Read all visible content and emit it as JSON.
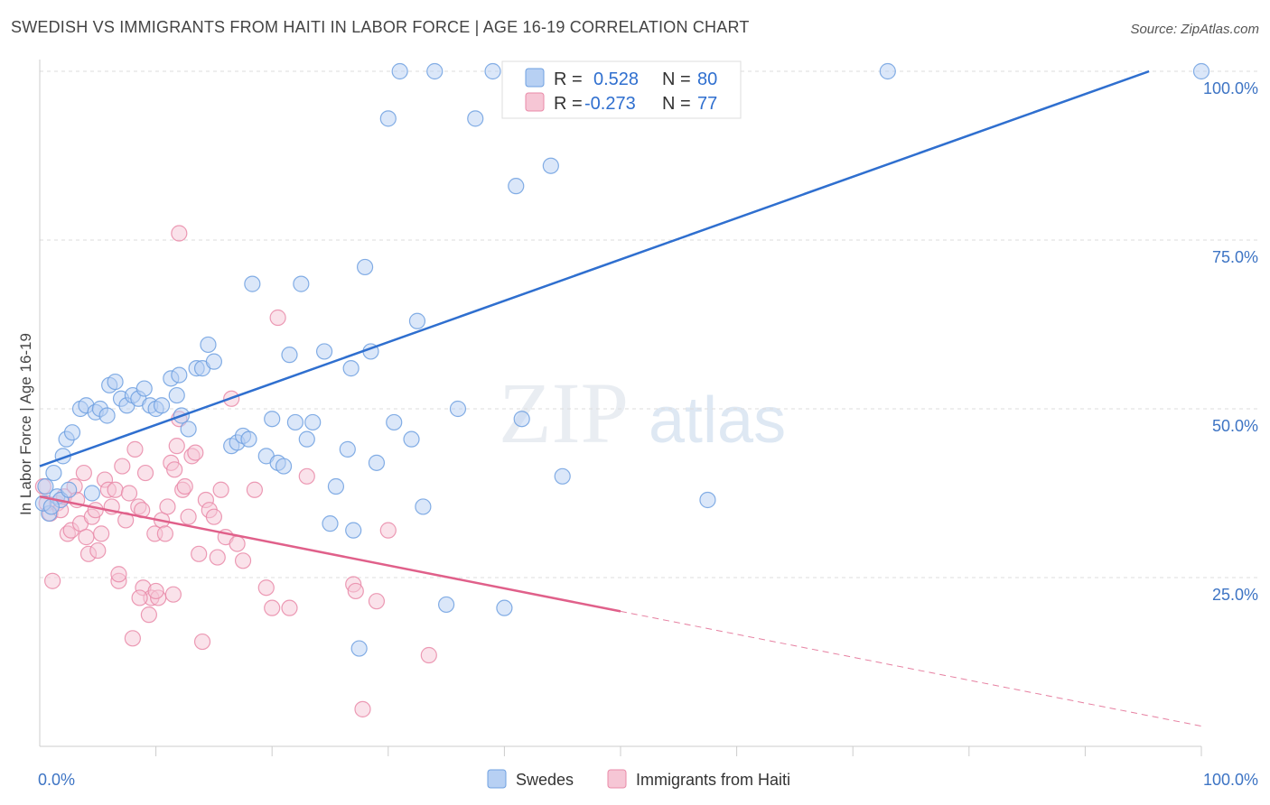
{
  "title": "SWEDISH VS IMMIGRANTS FROM HAITI IN LABOR FORCE | AGE 16-19 CORRELATION CHART",
  "source": "Source: ZipAtlas.com",
  "watermark": {
    "zip": "ZIP",
    "atlas": "atlas"
  },
  "colors": {
    "swedes": "#6fa0e0",
    "swedes_fill": "#b7d0f3",
    "swedes_line": "#2f6fcf",
    "haiti": "#e98aa8",
    "haiti_fill": "#f6c6d5",
    "haiti_line": "#e0608a",
    "grid": "#dddddd",
    "tick_text": "#3d74c4"
  },
  "legend": {
    "rows": [
      {
        "r_label": "R =",
        "r_value": "0.528",
        "n_label": "N =",
        "n_value": "80"
      },
      {
        "r_label": "R =",
        "r_value": "-0.273",
        "n_label": "N =",
        "n_value": "77"
      }
    ]
  },
  "bottom_legend": {
    "swedes": "Swedes",
    "haiti": "Immigrants from Haiti"
  },
  "chart_data": {
    "type": "scatter",
    "title": "SWEDISH VS IMMIGRANTS FROM HAITI IN LABOR FORCE | AGE 16-19 CORRELATION CHART",
    "ylabel": "In Labor Force | Age 16-19",
    "xlabel": "",
    "xlim": [
      0,
      100
    ],
    "ylim": [
      0,
      100
    ],
    "x_tick_labels": [
      "0.0%",
      "100.0%"
    ],
    "y_ticks": [
      25,
      50,
      75,
      100
    ],
    "y_tick_labels": [
      "25.0%",
      "50.0%",
      "75.0%",
      "100.0%"
    ],
    "grid": true,
    "legend_position": "top-center",
    "series": [
      {
        "name": "Swedes",
        "r": 0.528,
        "n": 80,
        "trend": {
          "x0": 0,
          "y0": 41.5,
          "x1": 95.5,
          "y1": 100
        },
        "points": [
          [
            0.5,
            38.5
          ],
          [
            0.8,
            34.5
          ],
          [
            1.2,
            40.5
          ],
          [
            1.5,
            37.0
          ],
          [
            1.8,
            36.5
          ],
          [
            2.0,
            43.0
          ],
          [
            2.3,
            45.5
          ],
          [
            2.8,
            46.5
          ],
          [
            3.5,
            50.0
          ],
          [
            4.0,
            50.5
          ],
          [
            4.8,
            49.5
          ],
          [
            5.2,
            50.0
          ],
          [
            5.8,
            49.0
          ],
          [
            6.0,
            53.5
          ],
          [
            6.5,
            54.0
          ],
          [
            7.0,
            51.5
          ],
          [
            7.5,
            50.5
          ],
          [
            8.0,
            52.0
          ],
          [
            8.5,
            51.5
          ],
          [
            9.0,
            53.0
          ],
          [
            9.5,
            50.5
          ],
          [
            10.0,
            50.0
          ],
          [
            10.5,
            50.5
          ],
          [
            11.3,
            54.5
          ],
          [
            11.8,
            52.0
          ],
          [
            12.2,
            49.0
          ],
          [
            12.8,
            47.0
          ],
          [
            13.5,
            56.0
          ],
          [
            14.0,
            56.0
          ],
          [
            14.5,
            59.5
          ],
          [
            15.0,
            57.0
          ],
          [
            16.5,
            44.5
          ],
          [
            17.0,
            45.0
          ],
          [
            17.5,
            46.0
          ],
          [
            18.0,
            45.5
          ],
          [
            18.3,
            68.5
          ],
          [
            19.5,
            43.0
          ],
          [
            20.0,
            48.5
          ],
          [
            20.5,
            42.0
          ],
          [
            21.0,
            41.5
          ],
          [
            21.5,
            58.0
          ],
          [
            22.0,
            48.0
          ],
          [
            22.5,
            68.5
          ],
          [
            23.0,
            45.5
          ],
          [
            23.5,
            48.0
          ],
          [
            24.5,
            58.5
          ],
          [
            25.0,
            33.0
          ],
          [
            25.5,
            38.5
          ],
          [
            26.5,
            44.0
          ],
          [
            26.8,
            56.0
          ],
          [
            27.0,
            32.0
          ],
          [
            27.5,
            14.5
          ],
          [
            28.0,
            71.0
          ],
          [
            28.5,
            58.5
          ],
          [
            29.0,
            42.0
          ],
          [
            30.0,
            93.0
          ],
          [
            30.5,
            48.0
          ],
          [
            31.0,
            100.0
          ],
          [
            32.0,
            45.5
          ],
          [
            32.5,
            63.0
          ],
          [
            33.0,
            35.5
          ],
          [
            34.0,
            100.0
          ],
          [
            35.0,
            21.0
          ],
          [
            36.0,
            50.0
          ],
          [
            37.5,
            93.0
          ],
          [
            39.0,
            100.0
          ],
          [
            40.0,
            20.5
          ],
          [
            41.0,
            83.0
          ],
          [
            41.5,
            48.5
          ],
          [
            44.0,
            86.0
          ],
          [
            45.0,
            40.0
          ],
          [
            56.0,
            100.0
          ],
          [
            57.5,
            36.5
          ],
          [
            73.0,
            100.0
          ],
          [
            100.0,
            100.0
          ],
          [
            0.3,
            36.0
          ],
          [
            1.0,
            35.5
          ],
          [
            2.5,
            38.0
          ],
          [
            4.5,
            37.5
          ],
          [
            12.0,
            55.0
          ]
        ]
      },
      {
        "name": "Immigrants from Haiti",
        "r": -0.273,
        "n": 77,
        "trend": {
          "x0": 0,
          "y0": 37.0,
          "x1": 50,
          "y1": 20.0,
          "dash_x1": 100,
          "dash_y1": 3.0
        },
        "points": [
          [
            0.3,
            38.5
          ],
          [
            0.6,
            36.0
          ],
          [
            0.9,
            34.5
          ],
          [
            1.1,
            24.5
          ],
          [
            1.5,
            36.0
          ],
          [
            1.8,
            35.0
          ],
          [
            2.1,
            37.0
          ],
          [
            2.4,
            31.5
          ],
          [
            2.7,
            32.0
          ],
          [
            3.0,
            38.5
          ],
          [
            3.2,
            36.5
          ],
          [
            3.5,
            33.0
          ],
          [
            3.8,
            40.5
          ],
          [
            4.0,
            31.0
          ],
          [
            4.2,
            28.5
          ],
          [
            4.5,
            34.0
          ],
          [
            4.8,
            35.0
          ],
          [
            5.0,
            29.0
          ],
          [
            5.3,
            31.5
          ],
          [
            5.6,
            39.5
          ],
          [
            5.9,
            38.0
          ],
          [
            6.2,
            35.5
          ],
          [
            6.5,
            38.0
          ],
          [
            6.8,
            24.5
          ],
          [
            6.8,
            25.5
          ],
          [
            7.1,
            41.5
          ],
          [
            7.4,
            33.5
          ],
          [
            7.7,
            37.5
          ],
          [
            8.0,
            16.0
          ],
          [
            8.2,
            44.0
          ],
          [
            8.5,
            35.5
          ],
          [
            8.8,
            35.0
          ],
          [
            8.9,
            23.5
          ],
          [
            9.1,
            40.5
          ],
          [
            9.4,
            19.5
          ],
          [
            9.6,
            22.0
          ],
          [
            9.9,
            31.5
          ],
          [
            10.2,
            22.0
          ],
          [
            10.5,
            33.5
          ],
          [
            10.8,
            31.5
          ],
          [
            11.0,
            35.5
          ],
          [
            11.3,
            42.0
          ],
          [
            11.6,
            41.0
          ],
          [
            11.8,
            44.5
          ],
          [
            12.0,
            48.5
          ],
          [
            12.3,
            38.0
          ],
          [
            12.5,
            38.5
          ],
          [
            12.8,
            34.0
          ],
          [
            13.1,
            43.0
          ],
          [
            13.4,
            43.5
          ],
          [
            13.7,
            28.5
          ],
          [
            14.0,
            15.5
          ],
          [
            14.3,
            36.5
          ],
          [
            14.6,
            35.0
          ],
          [
            15.0,
            34.0
          ],
          [
            15.3,
            28.0
          ],
          [
            15.6,
            38.0
          ],
          [
            16.0,
            31.0
          ],
          [
            16.5,
            51.5
          ],
          [
            17.5,
            27.5
          ],
          [
            18.5,
            38.0
          ],
          [
            19.5,
            23.5
          ],
          [
            20.0,
            20.5
          ],
          [
            20.5,
            63.5
          ],
          [
            21.5,
            20.5
          ],
          [
            23.0,
            40.0
          ],
          [
            27.0,
            24.0
          ],
          [
            27.2,
            23.0
          ],
          [
            27.8,
            5.5
          ],
          [
            29.0,
            21.5
          ],
          [
            33.5,
            13.5
          ],
          [
            12.0,
            76.0
          ],
          [
            10.0,
            23.0
          ],
          [
            11.5,
            22.5
          ],
          [
            8.6,
            22.0
          ],
          [
            17.0,
            30.0
          ],
          [
            30.0,
            32.0
          ]
        ]
      }
    ]
  }
}
